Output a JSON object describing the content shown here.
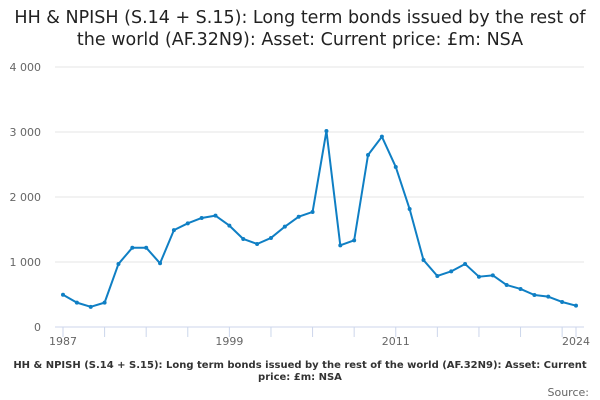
{
  "chart_data": {
    "type": "line",
    "title": "HH & NPISH (S.14 + S.15): Long term bonds issued by the rest of the world (AF.32N9): Asset: Current price: £m: NSA",
    "caption": "HH & NPISH (S.14 + S.15): Long term bonds issued by the rest of the world (AF.32N9): Asset: Current price: £m: NSA",
    "source_label": "Source:",
    "xlabel": "",
    "ylabel": "",
    "x": [
      1987,
      1988,
      1989,
      1990,
      1991,
      1992,
      1993,
      1994,
      1995,
      1996,
      1997,
      1998,
      1999,
      2000,
      2001,
      2002,
      2003,
      2004,
      2005,
      2006,
      2007,
      2008,
      2009,
      2010,
      2011,
      2012,
      2013,
      2014,
      2015,
      2016,
      2017,
      2018,
      2019,
      2020,
      2021,
      2022,
      2023,
      2024
    ],
    "values": [
      497,
      375,
      310,
      375,
      970,
      1220,
      1220,
      980,
      1490,
      1595,
      1677,
      1713,
      1560,
      1354,
      1277,
      1370,
      1544,
      1697,
      1770,
      3015,
      1256,
      1333,
      2646,
      2928,
      2462,
      1815,
      1030,
      785,
      856,
      970,
      774,
      795,
      646,
      585,
      492,
      467,
      385,
      328
    ],
    "x_tick_labels": [
      "1987",
      "1999",
      "2011",
      "2024"
    ],
    "y_ticks": [
      0,
      1000,
      2000,
      3000,
      4000
    ],
    "y_tick_labels": [
      "0",
      "1 000",
      "2 000",
      "3 000",
      "4 000"
    ],
    "ylim": [
      0,
      4000
    ],
    "xlim": [
      1987,
      2024
    ],
    "grid": true,
    "line_color": "#0f7fc4"
  }
}
